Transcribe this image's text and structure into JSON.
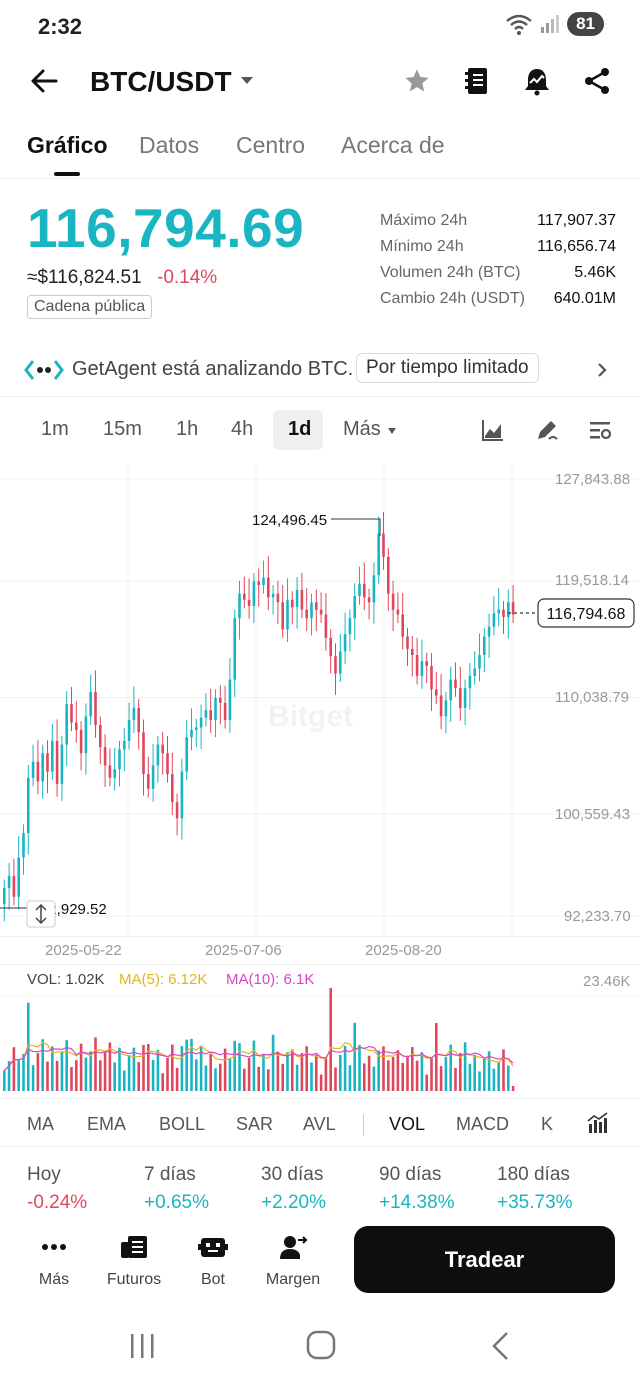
{
  "status_bar": {
    "time": "2:32",
    "battery": "81"
  },
  "header": {
    "pair": "BTC/USDT"
  },
  "tabs": [
    "Gráfico",
    "Datos",
    "Centro",
    "Acerca de"
  ],
  "price": {
    "last": "116,794.69",
    "fiat": "≈$116,824.51",
    "change": "-0.14%",
    "chain_badge": "Cadena pública"
  },
  "stats": [
    {
      "label": "Máximo 24h",
      "value": "117,907.37"
    },
    {
      "label": "Mínimo 24h",
      "value": "116,656.74"
    },
    {
      "label": "Volumen 24h (BTC)",
      "value": "5.46K"
    },
    {
      "label": "Cambio 24h (USDT)",
      "value": "640.01M"
    }
  ],
  "banner": {
    "text": "GetAgent está analizando BTC.",
    "tag": "Por tiempo limitado"
  },
  "timeframes": [
    "1m",
    "15m",
    "1h",
    "4h",
    "1d"
  ],
  "timeframe_more": "Más",
  "price_axis": [
    "127,843.88",
    "119,518.14",
    "110,038.79",
    "100,559.43",
    "92,233.70"
  ],
  "date_axis": [
    "2025-05-22",
    "2025-07-06",
    "2025-08-20"
  ],
  "chart_annotations": {
    "high": "124,496.45",
    "low": "92,929.52",
    "current": "116,794.68"
  },
  "watermark": "Bitget",
  "volume": {
    "vol": "VOL: 1.02K",
    "ma5": "MA(5): 6.12K",
    "ma10": "MA(10): 6.1K",
    "axis_max": "23.46K"
  },
  "indicators": [
    "MA",
    "EMA",
    "BOLL",
    "SAR",
    "AVL",
    "VOL",
    "MACD",
    "K"
  ],
  "performance": [
    {
      "label": "Hoy",
      "value": "-0.24%"
    },
    {
      "label": "7 días",
      "value": "+0.65%"
    },
    {
      "label": "30 días",
      "value": "+2.20%"
    },
    {
      "label": "90 días",
      "value": "+14.38%"
    },
    {
      "label": "180 días",
      "value": "+35.73%"
    }
  ],
  "bottom_nav": [
    "Más",
    "Futuros",
    "Bot",
    "Margen"
  ],
  "trade_button": "Tradear",
  "colors": {
    "up": "#1ab5c3",
    "down": "#e0475c",
    "ma5": "#e8b41c",
    "ma10": "#d845c8"
  },
  "chart_data": {
    "type": "candlestick",
    "interval": "1d",
    "x_ticks": [
      "2025-05-22",
      "2025-07-06",
      "2025-08-20"
    ],
    "y_ticks": [
      127843.88,
      119518.14,
      110038.79,
      100559.43,
      92233.7
    ],
    "ylim": [
      92233.7,
      127843.88
    ],
    "high_marker": 124496.45,
    "low_marker": 92929.52,
    "last_price": 116794.68,
    "closes": [
      94500,
      95500,
      93800,
      97000,
      99000,
      103500,
      104800,
      103200,
      105500,
      104000,
      106500,
      103000,
      106200,
      109500,
      108000,
      107400,
      105500,
      108500,
      110500,
      107800,
      106000,
      104500,
      103500,
      104200,
      105800,
      106500,
      108200,
      109200,
      107200,
      103800,
      102600,
      104500,
      106200,
      105500,
      103800,
      101500,
      100200,
      104000,
      106800,
      107400,
      107600,
      108400,
      109000,
      108200,
      110000,
      109600,
      108200,
      111500,
      116500,
      118500,
      118000,
      117500,
      119500,
      119200,
      119800,
      118200,
      118500,
      117800,
      115600,
      118000,
      117400,
      118800,
      117200,
      116500,
      117800,
      117200,
      116800,
      114900,
      113400,
      112000,
      113800,
      115200,
      116500,
      118300,
      119300,
      118200,
      117800,
      120000,
      123400,
      121500,
      118500,
      117200,
      116800,
      115000,
      114000,
      113500,
      111800,
      113000,
      112600,
      110700,
      110200,
      108500,
      109800,
      111500,
      110800,
      109200,
      110800,
      111800,
      112400,
      113500,
      115000,
      115800,
      116900,
      117200,
      116600,
      117800,
      116800
    ],
    "volume_series": "VOL",
    "ma_series": [
      {
        "name": "MA(5)",
        "last": "6.12K"
      },
      {
        "name": "MA(10)",
        "last": "6.1K"
      }
    ],
    "volume_last": "1.02K",
    "volume_axis_max": "23.46K"
  }
}
